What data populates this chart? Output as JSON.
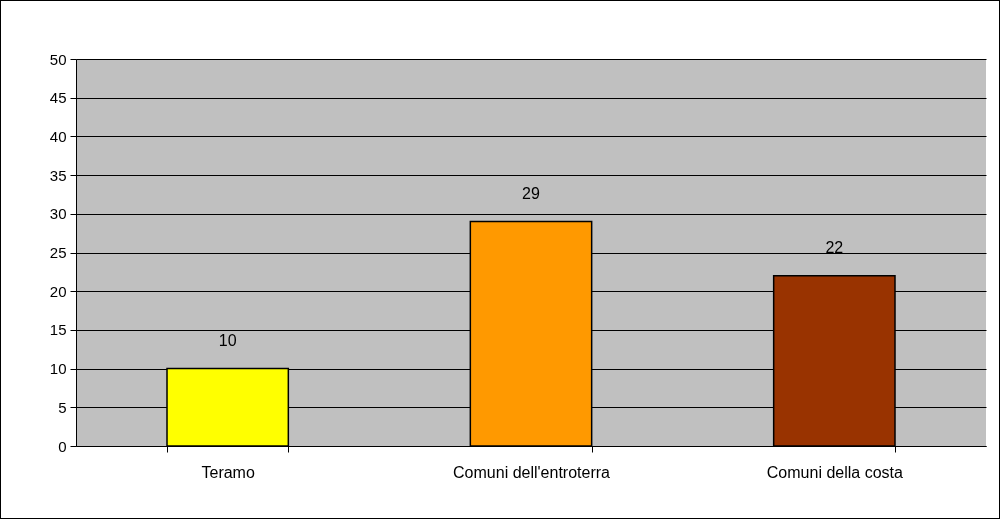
{
  "chart_data": {
    "type": "bar",
    "categories": [
      "Teramo",
      "Comuni dell'entroterra",
      "Comuni della costa"
    ],
    "values": [
      10,
      29,
      22
    ],
    "colors": [
      "#ffff00",
      "#ff9900",
      "#993300"
    ],
    "ylim": [
      0,
      50
    ],
    "yticks": [
      0,
      5,
      10,
      15,
      20,
      25,
      30,
      35,
      40,
      45,
      50
    ],
    "grid": "y",
    "data_labels": true,
    "legend": false
  }
}
